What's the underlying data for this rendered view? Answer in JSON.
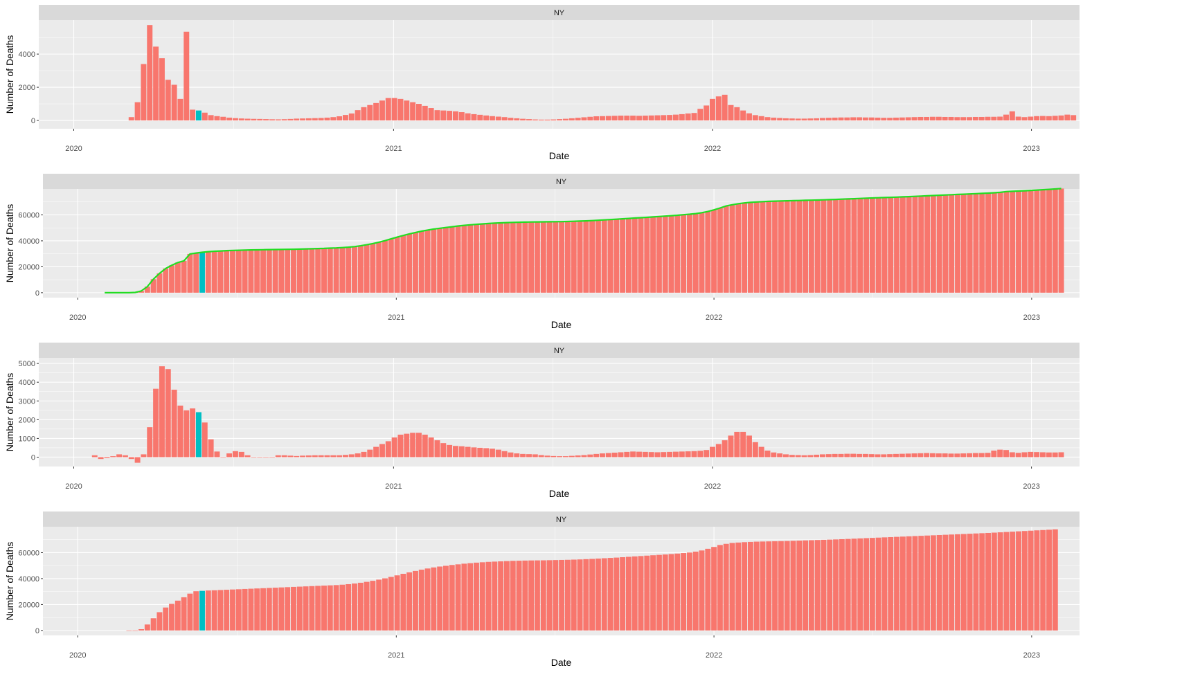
{
  "colors": {
    "panel_bg": "#EBEBEB",
    "strip_bg": "#D9D9D9",
    "grid": "#FFFFFF",
    "bar": "#F8766D",
    "highlight": "#00BFC4",
    "line_green": "#22DD22",
    "line_black": "#000000"
  },
  "chart_data": [
    {
      "type": "bar",
      "facet": "NY",
      "xlabel": "Date",
      "ylabel": "Number of Deaths",
      "xlim": [
        "2019-11-22",
        "2023-02-25"
      ],
      "ylim": [
        -500,
        6050
      ],
      "yticks": [
        0,
        2000,
        4000
      ],
      "xticks": [
        "2020-01-01",
        "2021-01-01",
        "2022-01-01",
        "2023-01-01"
      ],
      "xtick_labels": [
        "2020",
        "2021",
        "2022",
        "2023"
      ],
      "bar_interval_days": 7,
      "first_date": "2020-03-07",
      "highlight_date": "2020-05-23",
      "values": [
        200,
        1100,
        3400,
        5750,
        4450,
        3750,
        2450,
        2150,
        1300,
        5350,
        650,
        600,
        470,
        320,
        260,
        220,
        170,
        140,
        120,
        105,
        95,
        90,
        80,
        70,
        65,
        75,
        90,
        110,
        120,
        130,
        140,
        150,
        170,
        200,
        250,
        330,
        420,
        620,
        800,
        930,
        1050,
        1200,
        1350,
        1350,
        1300,
        1200,
        1100,
        1000,
        880,
        750,
        620,
        600,
        580,
        550,
        500,
        430,
        380,
        340,
        300,
        260,
        230,
        200,
        160,
        130,
        100,
        80,
        60,
        50,
        50,
        60,
        80,
        100,
        130,
        160,
        190,
        220,
        250,
        260,
        270,
        280,
        290,
        290,
        290,
        280,
        290,
        300,
        310,
        320,
        330,
        350,
        380,
        420,
        450,
        700,
        900,
        1300,
        1450,
        1550,
        930,
        800,
        600,
        430,
        320,
        260,
        200,
        170,
        150,
        130,
        120,
        110,
        110,
        120,
        130,
        150,
        160,
        170,
        180,
        180,
        190,
        190,
        180,
        180,
        170,
        160,
        160,
        170,
        180,
        190,
        200,
        210,
        210,
        220,
        220,
        210,
        210,
        200,
        200,
        200,
        210,
        210,
        220,
        220,
        230,
        350,
        550,
        230,
        200,
        230,
        260,
        270,
        260,
        280,
        300,
        350,
        320
      ]
    },
    {
      "type": "bar",
      "facet": "NY",
      "xlabel": "Date",
      "ylabel": "Number of Deaths",
      "xlim": [
        "2019-11-22",
        "2023-02-25"
      ],
      "ylim": [
        -3800,
        80000
      ],
      "yticks": [
        0,
        20000,
        40000,
        60000
      ],
      "xticks": [
        "2020-01-01",
        "2021-01-01",
        "2022-01-01",
        "2023-01-01"
      ],
      "xtick_labels": [
        "2020",
        "2021",
        "2022",
        "2023"
      ],
      "bar_interval_days": 7,
      "first_date": "2020-03-07",
      "highlight_date": "2020-05-23",
      "values": [
        200,
        1300,
        4700,
        10450,
        14900,
        18650,
        21100,
        23250,
        24550,
        29900,
        30550,
        31150,
        31620,
        31940,
        32200,
        32420,
        32590,
        32730,
        32850,
        32955,
        33050,
        33140,
        33220,
        33290,
        33355,
        33430,
        33520,
        33630,
        33750,
        33880,
        34020,
        34170,
        34340,
        34540,
        34790,
        35120,
        35540,
        36160,
        36960,
        37890,
        38940,
        40140,
        41490,
        42840,
        44140,
        45340,
        46440,
        47440,
        48320,
        49070,
        49690,
        50290,
        50870,
        51420,
        51920,
        52350,
        52730,
        53070,
        53370,
        53630,
        53860,
        54060,
        54220,
        54350,
        54450,
        54530,
        54590,
        54640,
        54690,
        54750,
        54830,
        54930,
        55060,
        55220,
        55410,
        55630,
        55880,
        56140,
        56410,
        56690,
        56980,
        57270,
        57560,
        57840,
        58130,
        58430,
        58740,
        59060,
        59390,
        59740,
        60120,
        60540,
        60990,
        61690,
        62590,
        63890,
        65340,
        66890,
        67820,
        68620,
        69220,
        69650,
        69970,
        70230,
        70430,
        70600,
        70750,
        70880,
        71000,
        71110,
        71220,
        71340,
        71470,
        71620,
        71780,
        71950,
        72130,
        72310,
        72500,
        72690,
        72870,
        73050,
        73220,
        73380,
        73540,
        73710,
        73890,
        74080,
        74280,
        74490,
        74700,
        74920,
        75140,
        75350,
        75560,
        75760,
        75960,
        76170,
        76380,
        76600,
        76820,
        77050,
        77400,
        77950,
        78180,
        78380,
        78610,
        78870,
        79140,
        79400,
        79680,
        79980,
        80330
      ]
    },
    {
      "type": "bar",
      "facet": "NY",
      "xlabel": "Date",
      "ylabel": "Number of Deaths",
      "xlim": [
        "2019-11-22",
        "2023-02-25"
      ],
      "ylim": [
        -500,
        5300
      ],
      "yticks": [
        0,
        1000,
        2000,
        3000,
        4000,
        5000
      ],
      "xticks": [
        "2020-01-01",
        "2021-01-01",
        "2022-01-01",
        "2023-01-01"
      ],
      "xtick_labels": [
        "2020",
        "2021",
        "2022",
        "2023"
      ],
      "bar_interval_days": 7,
      "first_date": "2020-01-25",
      "highlight_date": "2020-05-23",
      "values": [
        100,
        -100,
        -50,
        50,
        150,
        100,
        -100,
        -300,
        150,
        1600,
        3650,
        4850,
        4700,
        3600,
        2750,
        2500,
        2600,
        2400,
        1850,
        950,
        300,
        0,
        200,
        320,
        280,
        100,
        0,
        0,
        0,
        0,
        100,
        100,
        80,
        60,
        80,
        90,
        100,
        100,
        100,
        100,
        100,
        120,
        150,
        200,
        280,
        400,
        550,
        700,
        850,
        1050,
        1200,
        1250,
        1300,
        1300,
        1200,
        1050,
        900,
        750,
        650,
        600,
        580,
        550,
        520,
        500,
        480,
        450,
        400,
        320,
        250,
        200,
        170,
        160,
        150,
        110,
        80,
        60,
        50,
        50,
        70,
        90,
        110,
        140,
        170,
        200,
        220,
        240,
        260,
        280,
        300,
        290,
        280,
        270,
        260,
        270,
        280,
        290,
        300,
        310,
        320,
        340,
        380,
        550,
        700,
        900,
        1150,
        1350,
        1350,
        1150,
        800,
        550,
        350,
        250,
        200,
        150,
        120,
        110,
        100,
        110,
        130,
        150,
        160,
        170,
        170,
        180,
        180,
        170,
        170,
        160,
        150,
        150,
        160,
        170,
        180,
        190,
        200,
        210,
        220,
        210,
        200,
        200,
        190,
        190,
        200,
        210,
        220,
        220,
        230,
        350,
        400,
        380,
        260,
        230,
        260,
        280,
        270,
        260,
        250,
        250,
        260
      ]
    },
    {
      "type": "bar",
      "facet": "NY",
      "xlabel": "Date",
      "ylabel": "Number of Deaths",
      "xlim": [
        "2019-11-22",
        "2023-02-25"
      ],
      "ylim": [
        -3800,
        80000
      ],
      "yticks": [
        0,
        20000,
        40000,
        60000
      ],
      "xticks": [
        "2020-01-01",
        "2021-01-01",
        "2022-01-01",
        "2023-01-01"
      ],
      "xtick_labels": [
        "2020",
        "2021",
        "2022",
        "2023"
      ],
      "bar_interval_days": 7,
      "first_date": "2020-02-29",
      "highlight_date": "2020-05-23",
      "values": [
        -300,
        0,
        1000,
        4600,
        9400,
        14100,
        17700,
        20500,
        23000,
        25600,
        28400,
        30250,
        30550,
        30850,
        31000,
        31200,
        31400,
        31600,
        31800,
        32000,
        32200,
        32400,
        32600,
        32800,
        33000,
        33200,
        33400,
        33600,
        33800,
        34000,
        34200,
        34400,
        34600,
        34800,
        35000,
        35300,
        35700,
        36200,
        36800,
        37500,
        38300,
        39200,
        40200,
        41300,
        42500,
        43700,
        44800,
        45900,
        46900,
        47800,
        48600,
        49300,
        49900,
        50500,
        51000,
        51500,
        51900,
        52300,
        52600,
        52900,
        53100,
        53300,
        53500,
        53700,
        53800,
        53900,
        54000,
        54050,
        54100,
        54200,
        54300,
        54400,
        54500,
        54650,
        54800,
        55000,
        55200,
        55450,
        55700,
        55950,
        56200,
        56500,
        56800,
        57100,
        57400,
        57700,
        58000,
        58300,
        58600,
        58950,
        59300,
        59700,
        60100,
        60800,
        61700,
        63000,
        64400,
        65900,
        66800,
        67500,
        67800,
        68100,
        68300,
        68500,
        68600,
        68700,
        68800,
        68900,
        69000,
        69150,
        69300,
        69450,
        69600,
        69750,
        69900,
        70050,
        70200,
        70400,
        70600,
        70800,
        71000,
        71200,
        71400,
        71600,
        71800,
        72000,
        72200,
        72400,
        72600,
        72800,
        73000,
        73200,
        73400,
        73600,
        73800,
        74000,
        74200,
        74400,
        74600,
        74800,
        75000,
        75200,
        75450,
        75700,
        75950,
        76200,
        76450,
        76700,
        76950,
        77200,
        77450,
        77700,
        78000
      ]
    }
  ]
}
